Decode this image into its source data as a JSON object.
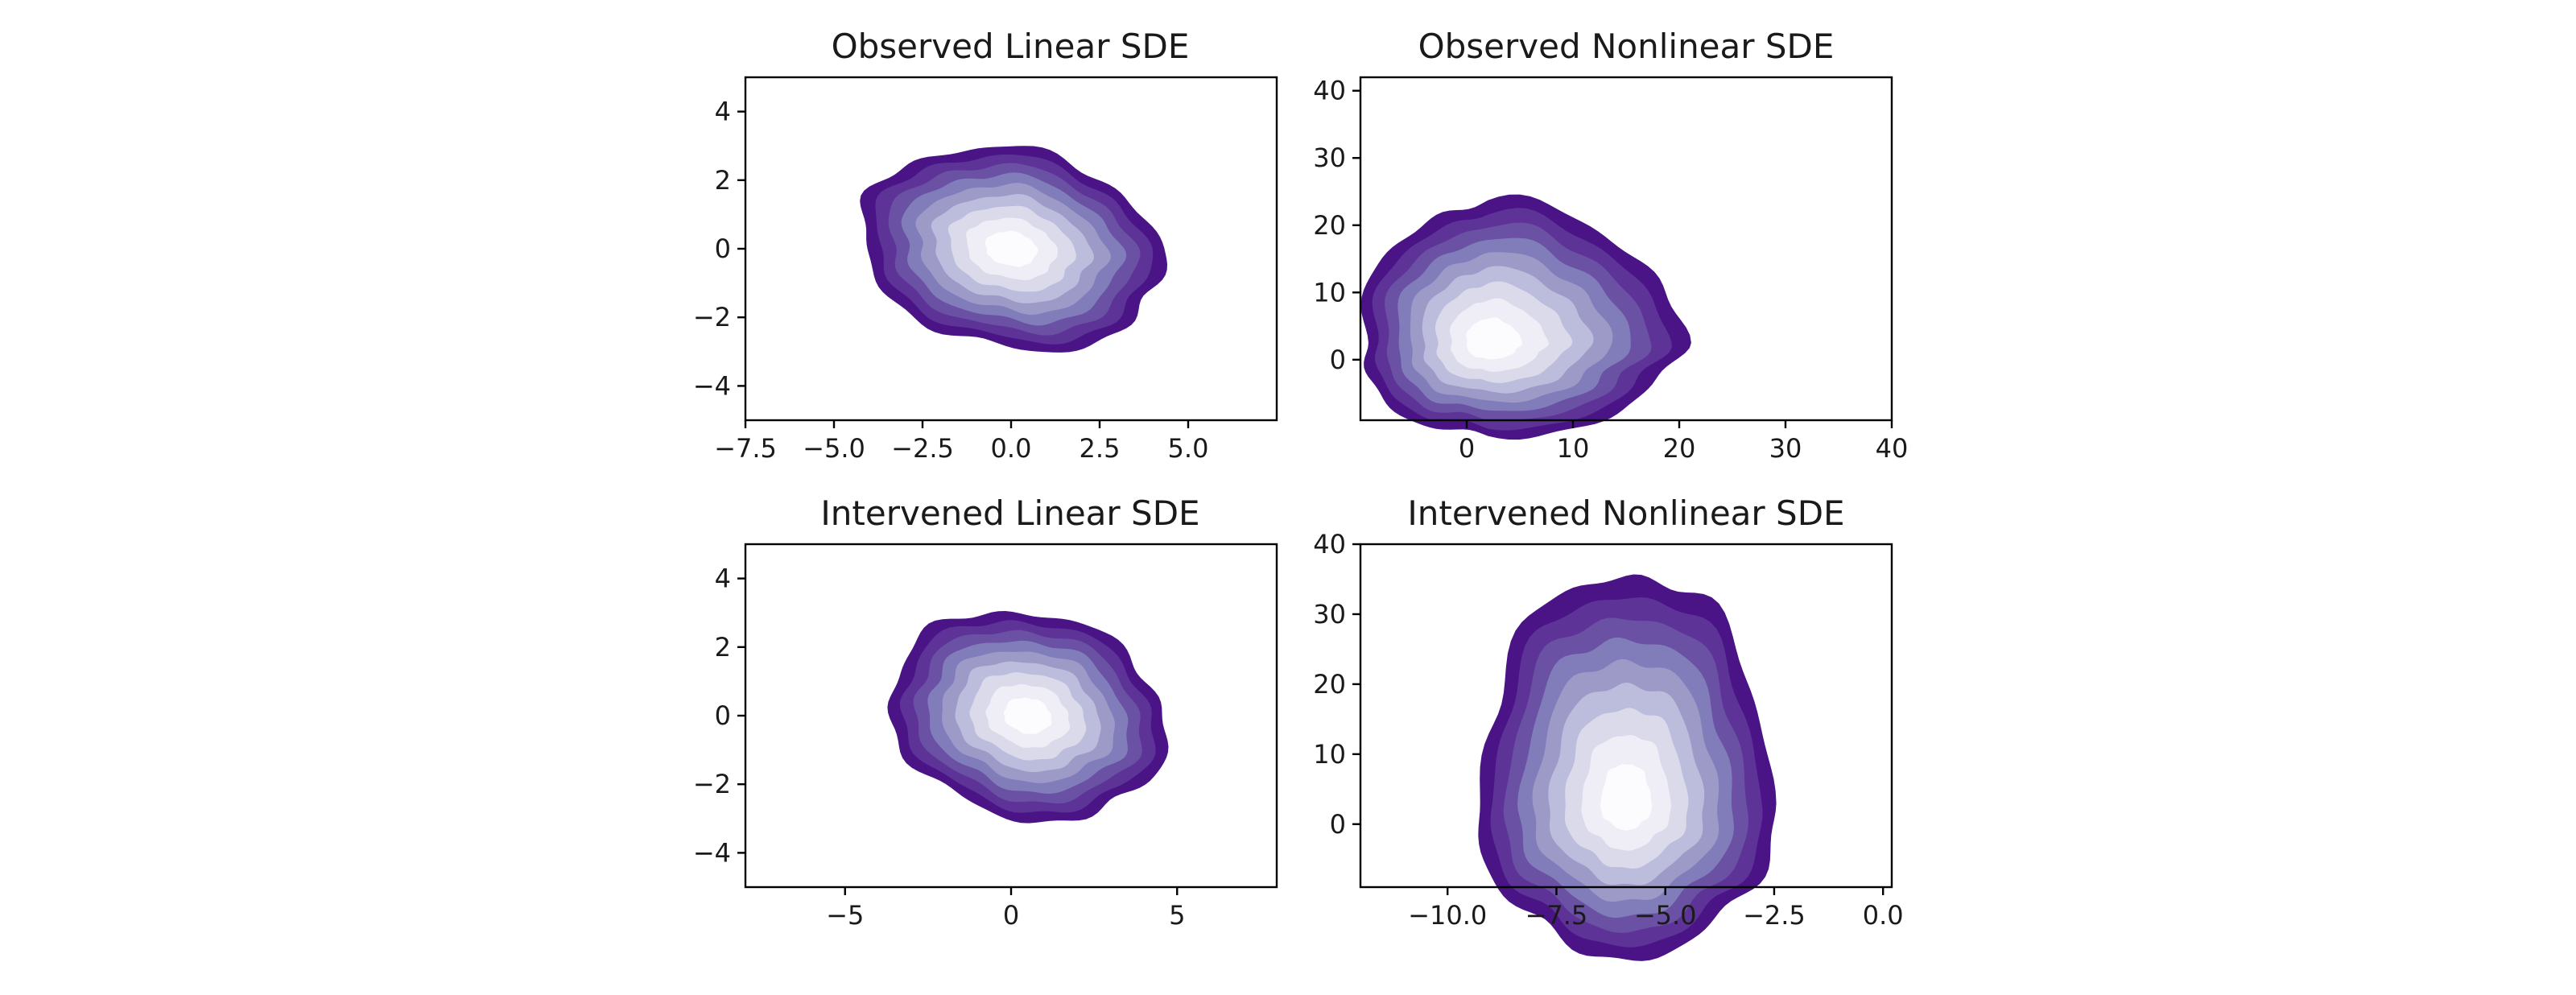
{
  "chart_data": [
    {
      "type": "density-contour",
      "title": "Observed Linear SDE",
      "xlim": [
        -7.5,
        7.5
      ],
      "ylim": [
        -5,
        5
      ],
      "xticks": [
        -7.5,
        -5.0,
        -2.5,
        0.0,
        2.5,
        5.0
      ],
      "xtick_labels": [
        "−7.5",
        "−5.0",
        "−2.5",
        "0.0",
        "2.5",
        "5.0"
      ],
      "yticks": [
        -4,
        -2,
        0,
        2,
        4
      ],
      "ytick_labels": [
        "−4",
        "−2",
        "0",
        "2",
        "4"
      ],
      "density": {
        "center": [
          0.0,
          0.0
        ],
        "spread": [
          4.3,
          2.9
        ],
        "rotation_deg": -12,
        "skew": [
          0.0,
          0.0
        ]
      }
    },
    {
      "type": "density-contour",
      "title": "Observed Nonlinear SDE",
      "xlim": [
        -10,
        40
      ],
      "ylim": [
        -9,
        42
      ],
      "xticks": [
        0,
        10,
        20,
        30,
        40
      ],
      "xtick_labels": [
        "0",
        "10",
        "20",
        "30",
        "40"
      ],
      "yticks": [
        0,
        10,
        20,
        30,
        40
      ],
      "ytick_labels": [
        "0",
        "10",
        "20",
        "30",
        "40"
      ],
      "density": {
        "center": [
          2.0,
          2.5
        ],
        "spread": [
          12,
          14
        ],
        "rotation_deg": 0,
        "skew": [
          1.0,
          1.0
        ]
      }
    },
    {
      "type": "density-contour",
      "title": "Intervened Linear SDE",
      "xlim": [
        -8,
        8
      ],
      "ylim": [
        -5,
        5
      ],
      "xticks": [
        -5,
        0,
        5
      ],
      "xtick_labels": [
        "−5",
        "0",
        "5"
      ],
      "yticks": [
        -4,
        -2,
        0,
        2,
        4
      ],
      "ytick_labels": [
        "−4",
        "−2",
        "0",
        "2",
        "4"
      ],
      "density": {
        "center": [
          0.5,
          0.0
        ],
        "spread": [
          4.2,
          3.0
        ],
        "rotation_deg": -12,
        "skew": [
          0.0,
          0.0
        ]
      }
    },
    {
      "type": "density-contour",
      "title": "Intervened Nonlinear SDE",
      "xlim": [
        -12,
        0.2
      ],
      "ylim": [
        -9,
        40
      ],
      "xticks": [
        -10.0,
        -7.5,
        -5.0,
        -2.5,
        0.0
      ],
      "xtick_labels": [
        "−10.0",
        "−7.5",
        "−5.0",
        "−2.5",
        "0.0"
      ],
      "yticks": [
        0,
        10,
        20,
        30,
        40
      ],
      "ytick_labels": [
        "0",
        "10",
        "20",
        "30",
        "40"
      ],
      "density": {
        "center": [
          -5.9,
          3.0
        ],
        "spread": [
          3.4,
          22
        ],
        "rotation_deg": 0,
        "skew": [
          0.0,
          1.0
        ]
      }
    }
  ],
  "colors": {
    "levels": [
      "#4a1486",
      "#5d3397",
      "#6a51a3",
      "#807dba",
      "#9e9ac8",
      "#bcbddc",
      "#dadaeb",
      "#efedf5",
      "#fcfbfd"
    ]
  }
}
